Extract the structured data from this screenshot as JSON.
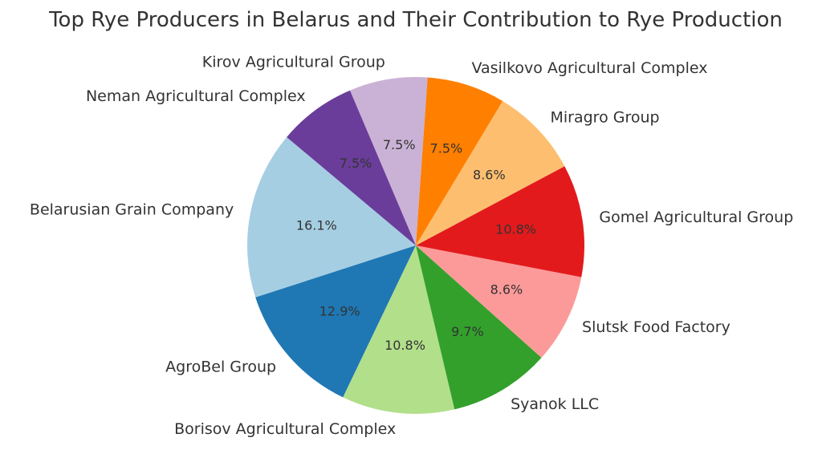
{
  "chart_data": {
    "type": "pie",
    "title": "Top Rye Producers in Belarus and Their Contribution to Rye Production",
    "slices": [
      {
        "label": "Belarusian Grain Company",
        "value": 16.1,
        "pct_label": "16.1%",
        "color": "#a6cee3"
      },
      {
        "label": "AgroBel Group",
        "value": 12.9,
        "pct_label": "12.9%",
        "color": "#1f78b4"
      },
      {
        "label": "Borisov Agricultural Complex",
        "value": 10.8,
        "pct_label": "10.8%",
        "color": "#b2df8a"
      },
      {
        "label": "Syanok LLC",
        "value": 9.7,
        "pct_label": "9.7%",
        "color": "#33a02c"
      },
      {
        "label": "Slutsk Food Factory",
        "value": 8.6,
        "pct_label": "8.6%",
        "color": "#fb9a99"
      },
      {
        "label": "Gomel Agricultural Group",
        "value": 10.8,
        "pct_label": "10.8%",
        "color": "#e31a1c"
      },
      {
        "label": "Miragro Group",
        "value": 8.6,
        "pct_label": "8.6%",
        "color": "#fdbf6f"
      },
      {
        "label": "Vasilkovo Agricultural Complex",
        "value": 7.5,
        "pct_label": "7.5%",
        "color": "#ff7f00"
      },
      {
        "label": "Kirov Agricultural Group",
        "value": 7.5,
        "pct_label": "7.5%",
        "color": "#cab2d6"
      },
      {
        "label": "Neman Agricultural Complex",
        "value": 7.5,
        "pct_label": "7.5%",
        "color": "#6a3d9a"
      }
    ]
  }
}
